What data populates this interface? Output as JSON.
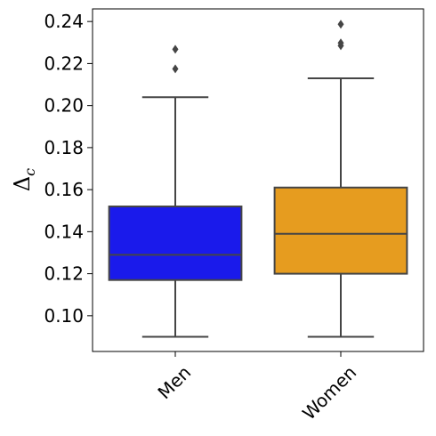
{
  "chart_data": {
    "type": "box",
    "title": "",
    "xlabel": "",
    "ylabel": "Δ",
    "ylabel_subscript": "c",
    "categories": [
      "Men",
      "Women"
    ],
    "ylim": [
      0.083,
      0.246
    ],
    "yticks": [
      0.1,
      0.12,
      0.14,
      0.16,
      0.18,
      0.2,
      0.22,
      0.24
    ],
    "ytick_labels": [
      "0.10",
      "0.12",
      "0.14",
      "0.16",
      "0.18",
      "0.20",
      "0.22",
      "0.24"
    ],
    "grid": false,
    "series": [
      {
        "category": "Men",
        "color": "#1a1aeb",
        "whisker_low": 0.09,
        "q1": 0.117,
        "median": 0.129,
        "q3": 0.152,
        "whisker_high": 0.204,
        "outliers": [
          0.2175,
          0.2268
        ]
      },
      {
        "category": "Women",
        "color": "#e69c1f",
        "whisker_low": 0.09,
        "q1": 0.12,
        "median": 0.139,
        "q3": 0.161,
        "whisker_high": 0.213,
        "outliers": [
          0.2285,
          0.2298,
          0.2387
        ]
      }
    ]
  }
}
